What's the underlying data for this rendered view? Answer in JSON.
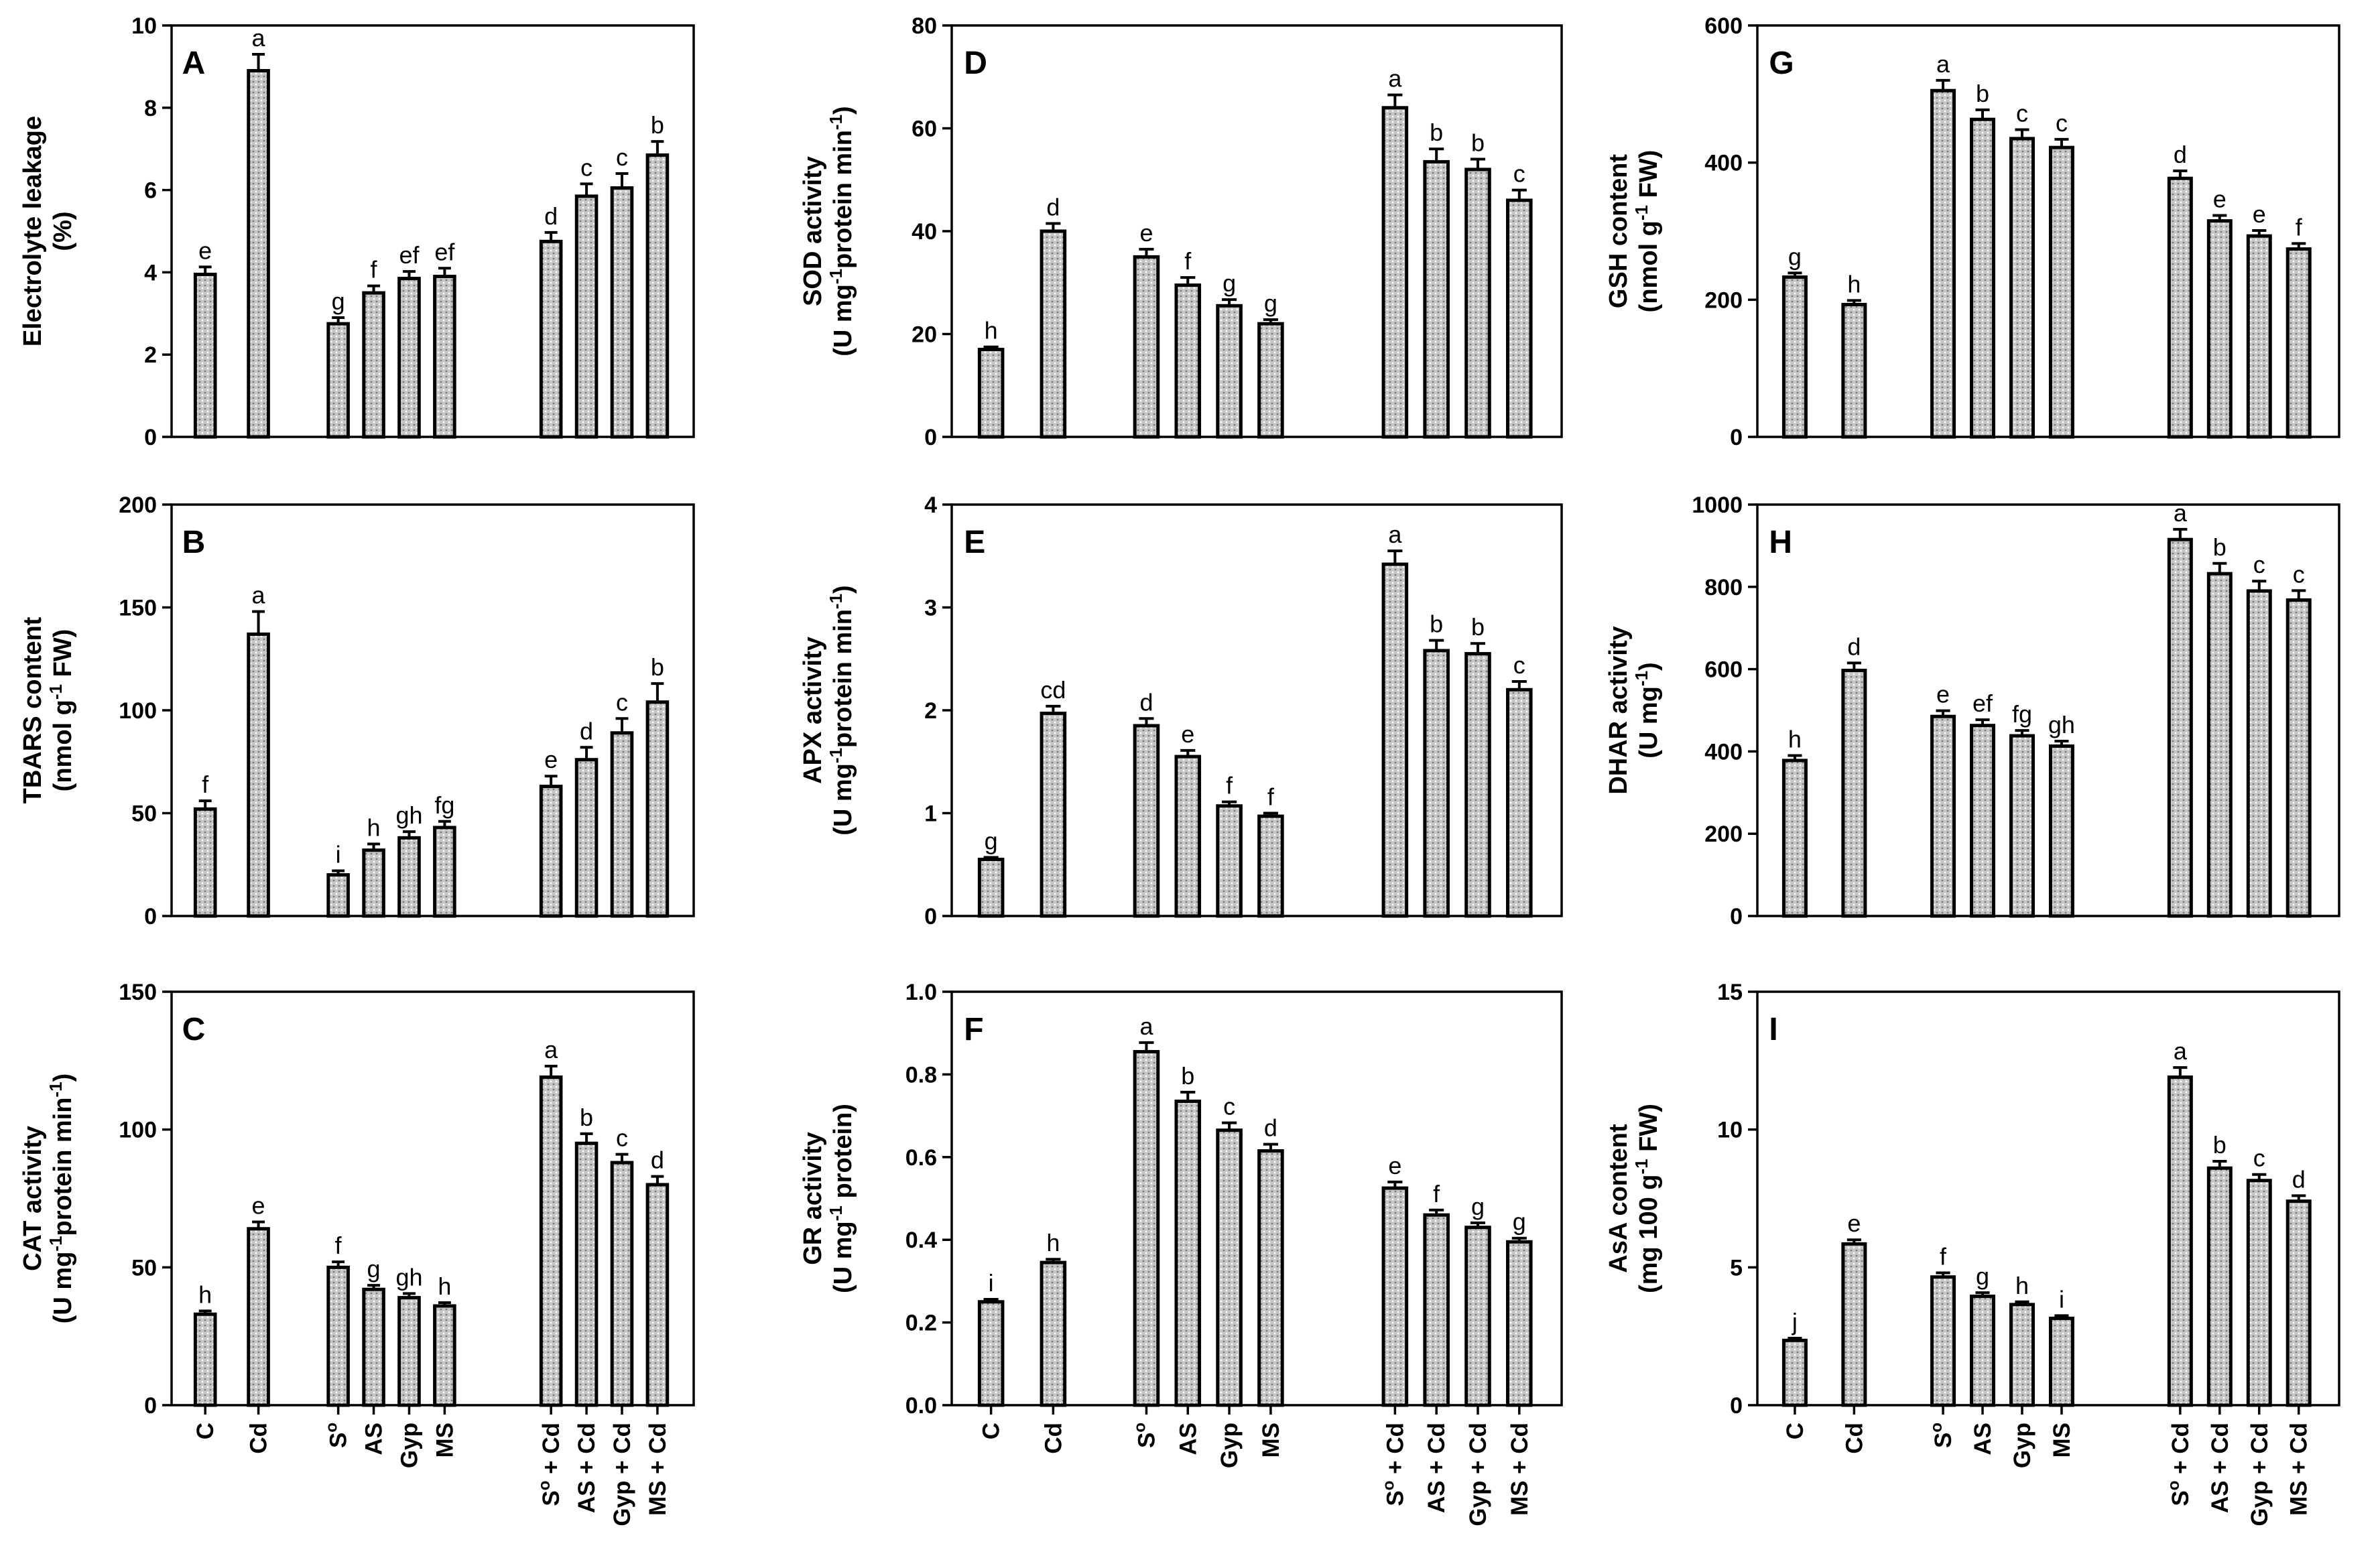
{
  "figure": {
    "categories": [
      "C",
      "Cd",
      "S",
      "AS",
      "Gyp",
      "MS",
      "S + Cd",
      "AS + Cd",
      "Gyp + Cd",
      "MS + Cd"
    ],
    "category_superscripts": [
      "",
      "",
      "o",
      "",
      "",
      "",
      "o",
      "",
      "",
      ""
    ],
    "bar_fill": "#c8c8c8",
    "bar_edge": "#000000"
  },
  "chart_data": [
    {
      "type": "bar",
      "panel": "A",
      "ylabel_lines": [
        [
          {
            "t": "Electrolyte leakage"
          }
        ],
        [
          {
            "t": "(%)"
          }
        ]
      ],
      "ylim": [
        0,
        10
      ],
      "yticks": [
        0,
        2,
        4,
        6,
        8,
        10
      ],
      "values": [
        3.95,
        8.9,
        2.75,
        3.5,
        3.85,
        3.9,
        4.75,
        5.85,
        6.05,
        6.85
      ],
      "errors": [
        0.18,
        0.4,
        0.15,
        0.17,
        0.17,
        0.2,
        0.22,
        0.3,
        0.35,
        0.33
      ],
      "letters": [
        "e",
        "a",
        "g",
        "f",
        "ef",
        "ef",
        "d",
        "c",
        "c",
        "b"
      ]
    },
    {
      "type": "bar",
      "panel": "B",
      "ylabel_lines": [
        [
          {
            "t": "TBARS content"
          }
        ],
        [
          {
            "t": "(nmol g"
          },
          {
            "t": "-1",
            "sup": true
          },
          {
            "t": " FW)"
          }
        ]
      ],
      "ylim": [
        0,
        200
      ],
      "yticks": [
        0,
        50,
        100,
        150,
        200
      ],
      "values": [
        52,
        137,
        20,
        32,
        38,
        43,
        63,
        76,
        89,
        104
      ],
      "errors": [
        4,
        11,
        2,
        3,
        3,
        3,
        5,
        6,
        7,
        9
      ],
      "letters": [
        "f",
        "a",
        "i",
        "h",
        "gh",
        "fg",
        "e",
        "d",
        "c",
        "b"
      ]
    },
    {
      "type": "bar",
      "panel": "C",
      "ylabel_lines": [
        [
          {
            "t": "CAT activity"
          }
        ],
        [
          {
            "t": "(U mg"
          },
          {
            "t": "-1",
            "sup": true
          },
          {
            "t": "protein min"
          },
          {
            "t": "-1",
            "sup": true
          },
          {
            "t": ")"
          }
        ]
      ],
      "ylim": [
        0,
        150
      ],
      "yticks": [
        0,
        50,
        100,
        150
      ],
      "values": [
        33,
        64,
        50,
        42,
        39,
        36,
        119,
        95,
        88,
        80
      ],
      "errors": [
        1.2,
        2.5,
        2,
        1.5,
        1.5,
        1.2,
        4,
        3.5,
        3,
        3
      ],
      "letters": [
        "h",
        "e",
        "f",
        "g",
        "gh",
        "h",
        "a",
        "b",
        "c",
        "d"
      ]
    },
    {
      "type": "bar",
      "panel": "D",
      "ylabel_lines": [
        [
          {
            "t": "SOD activity"
          }
        ],
        [
          {
            "t": "(U mg"
          },
          {
            "t": "-1",
            "sup": true
          },
          {
            "t": "protein min"
          },
          {
            "t": "-1",
            "sup": true
          },
          {
            "t": ")"
          }
        ]
      ],
      "ylim": [
        0,
        80
      ],
      "yticks": [
        0,
        20,
        40,
        60,
        80
      ],
      "values": [
        17,
        40,
        35,
        29.5,
        25.5,
        22,
        64,
        53.5,
        52,
        46
      ],
      "errors": [
        0.5,
        1.5,
        1.5,
        1.5,
        1.2,
        0.8,
        2.5,
        2.5,
        2,
        2
      ],
      "letters": [
        "h",
        "d",
        "e",
        "f",
        "g",
        "g",
        "a",
        "b",
        "b",
        "c"
      ]
    },
    {
      "type": "bar",
      "panel": "E",
      "ylabel_lines": [
        [
          {
            "t": "APX activity"
          }
        ],
        [
          {
            "t": "(U mg"
          },
          {
            "t": "-1",
            "sup": true
          },
          {
            "t": "protein min"
          },
          {
            "t": "-1",
            "sup": true
          },
          {
            "t": ")"
          }
        ]
      ],
      "ylim": [
        0,
        4
      ],
      "yticks": [
        0,
        1,
        2,
        3,
        4
      ],
      "values": [
        0.55,
        1.97,
        1.85,
        1.55,
        1.07,
        0.97,
        3.42,
        2.58,
        2.55,
        2.2
      ],
      "errors": [
        0.02,
        0.07,
        0.07,
        0.06,
        0.04,
        0.03,
        0.13,
        0.1,
        0.1,
        0.08
      ],
      "letters": [
        "g",
        "cd",
        "d",
        "e",
        "f",
        "f",
        "a",
        "b",
        "b",
        "c"
      ]
    },
    {
      "type": "bar",
      "panel": "F",
      "ylabel_lines": [
        [
          {
            "t": "GR activity"
          }
        ],
        [
          {
            "t": "(U mg"
          },
          {
            "t": "-1",
            "sup": true
          },
          {
            "t": " protein)"
          }
        ]
      ],
      "ylim": [
        0,
        1
      ],
      "yticks": [
        0,
        0.2,
        0.4,
        0.6,
        0.8,
        1.0
      ],
      "ytick_labels": [
        "0.0",
        "0.2",
        "0.4",
        "0.6",
        "0.8",
        "1.0"
      ],
      "values": [
        0.25,
        0.345,
        0.855,
        0.735,
        0.665,
        0.615,
        0.525,
        0.46,
        0.43,
        0.395
      ],
      "errors": [
        0.006,
        0.008,
        0.022,
        0.022,
        0.018,
        0.016,
        0.015,
        0.012,
        0.011,
        0.009
      ],
      "letters": [
        "i",
        "h",
        "a",
        "b",
        "c",
        "d",
        "e",
        "f",
        "g",
        "g"
      ]
    },
    {
      "type": "bar",
      "panel": "G",
      "ylabel_lines": [
        [
          {
            "t": "GSH content"
          }
        ],
        [
          {
            "t": "(nmol g"
          },
          {
            "t": "-1",
            "sup": true
          },
          {
            "t": " FW)"
          }
        ]
      ],
      "ylim": [
        0,
        600
      ],
      "yticks": [
        0,
        200,
        400,
        600
      ],
      "values": [
        233,
        193,
        505,
        463,
        435,
        422,
        377,
        315,
        293,
        274
      ],
      "errors": [
        6,
        6,
        15,
        14,
        13,
        12,
        11,
        8,
        8,
        8
      ],
      "letters": [
        "g",
        "h",
        "a",
        "b",
        "c",
        "c",
        "d",
        "e",
        "e",
        "f"
      ]
    },
    {
      "type": "bar",
      "panel": "H",
      "ylabel_lines": [
        [
          {
            "t": "DHAR activity"
          }
        ],
        [
          {
            "t": "(U mg"
          },
          {
            "t": "-1",
            "sup": true
          },
          {
            "t": ")"
          }
        ]
      ],
      "ylim": [
        0,
        1000
      ],
      "yticks": [
        0,
        200,
        400,
        600,
        800,
        1000
      ],
      "values": [
        378,
        597,
        485,
        463,
        438,
        413,
        915,
        832,
        790,
        768
      ],
      "errors": [
        12,
        18,
        14,
        14,
        13,
        12,
        25,
        25,
        24,
        23
      ],
      "letters": [
        "h",
        "d",
        "e",
        "ef",
        "fg",
        "gh",
        "a",
        "b",
        "c",
        "c"
      ]
    },
    {
      "type": "bar",
      "panel": "I",
      "ylabel_lines": [
        [
          {
            "t": "AsA content"
          }
        ],
        [
          {
            "t": "(mg 100 g"
          },
          {
            "t": "-1",
            "sup": true
          },
          {
            "t": " FW)"
          }
        ]
      ],
      "ylim": [
        0,
        15
      ],
      "yticks": [
        0,
        5,
        10,
        15
      ],
      "values": [
        2.35,
        5.85,
        4.65,
        3.95,
        3.65,
        3.15,
        11.9,
        8.6,
        8.15,
        7.4
      ],
      "errors": [
        0.08,
        0.15,
        0.15,
        0.13,
        0.1,
        0.1,
        0.35,
        0.25,
        0.22,
        0.2
      ],
      "letters": [
        "j",
        "e",
        "f",
        "g",
        "h",
        "i",
        "a",
        "b",
        "c",
        "d"
      ]
    }
  ]
}
